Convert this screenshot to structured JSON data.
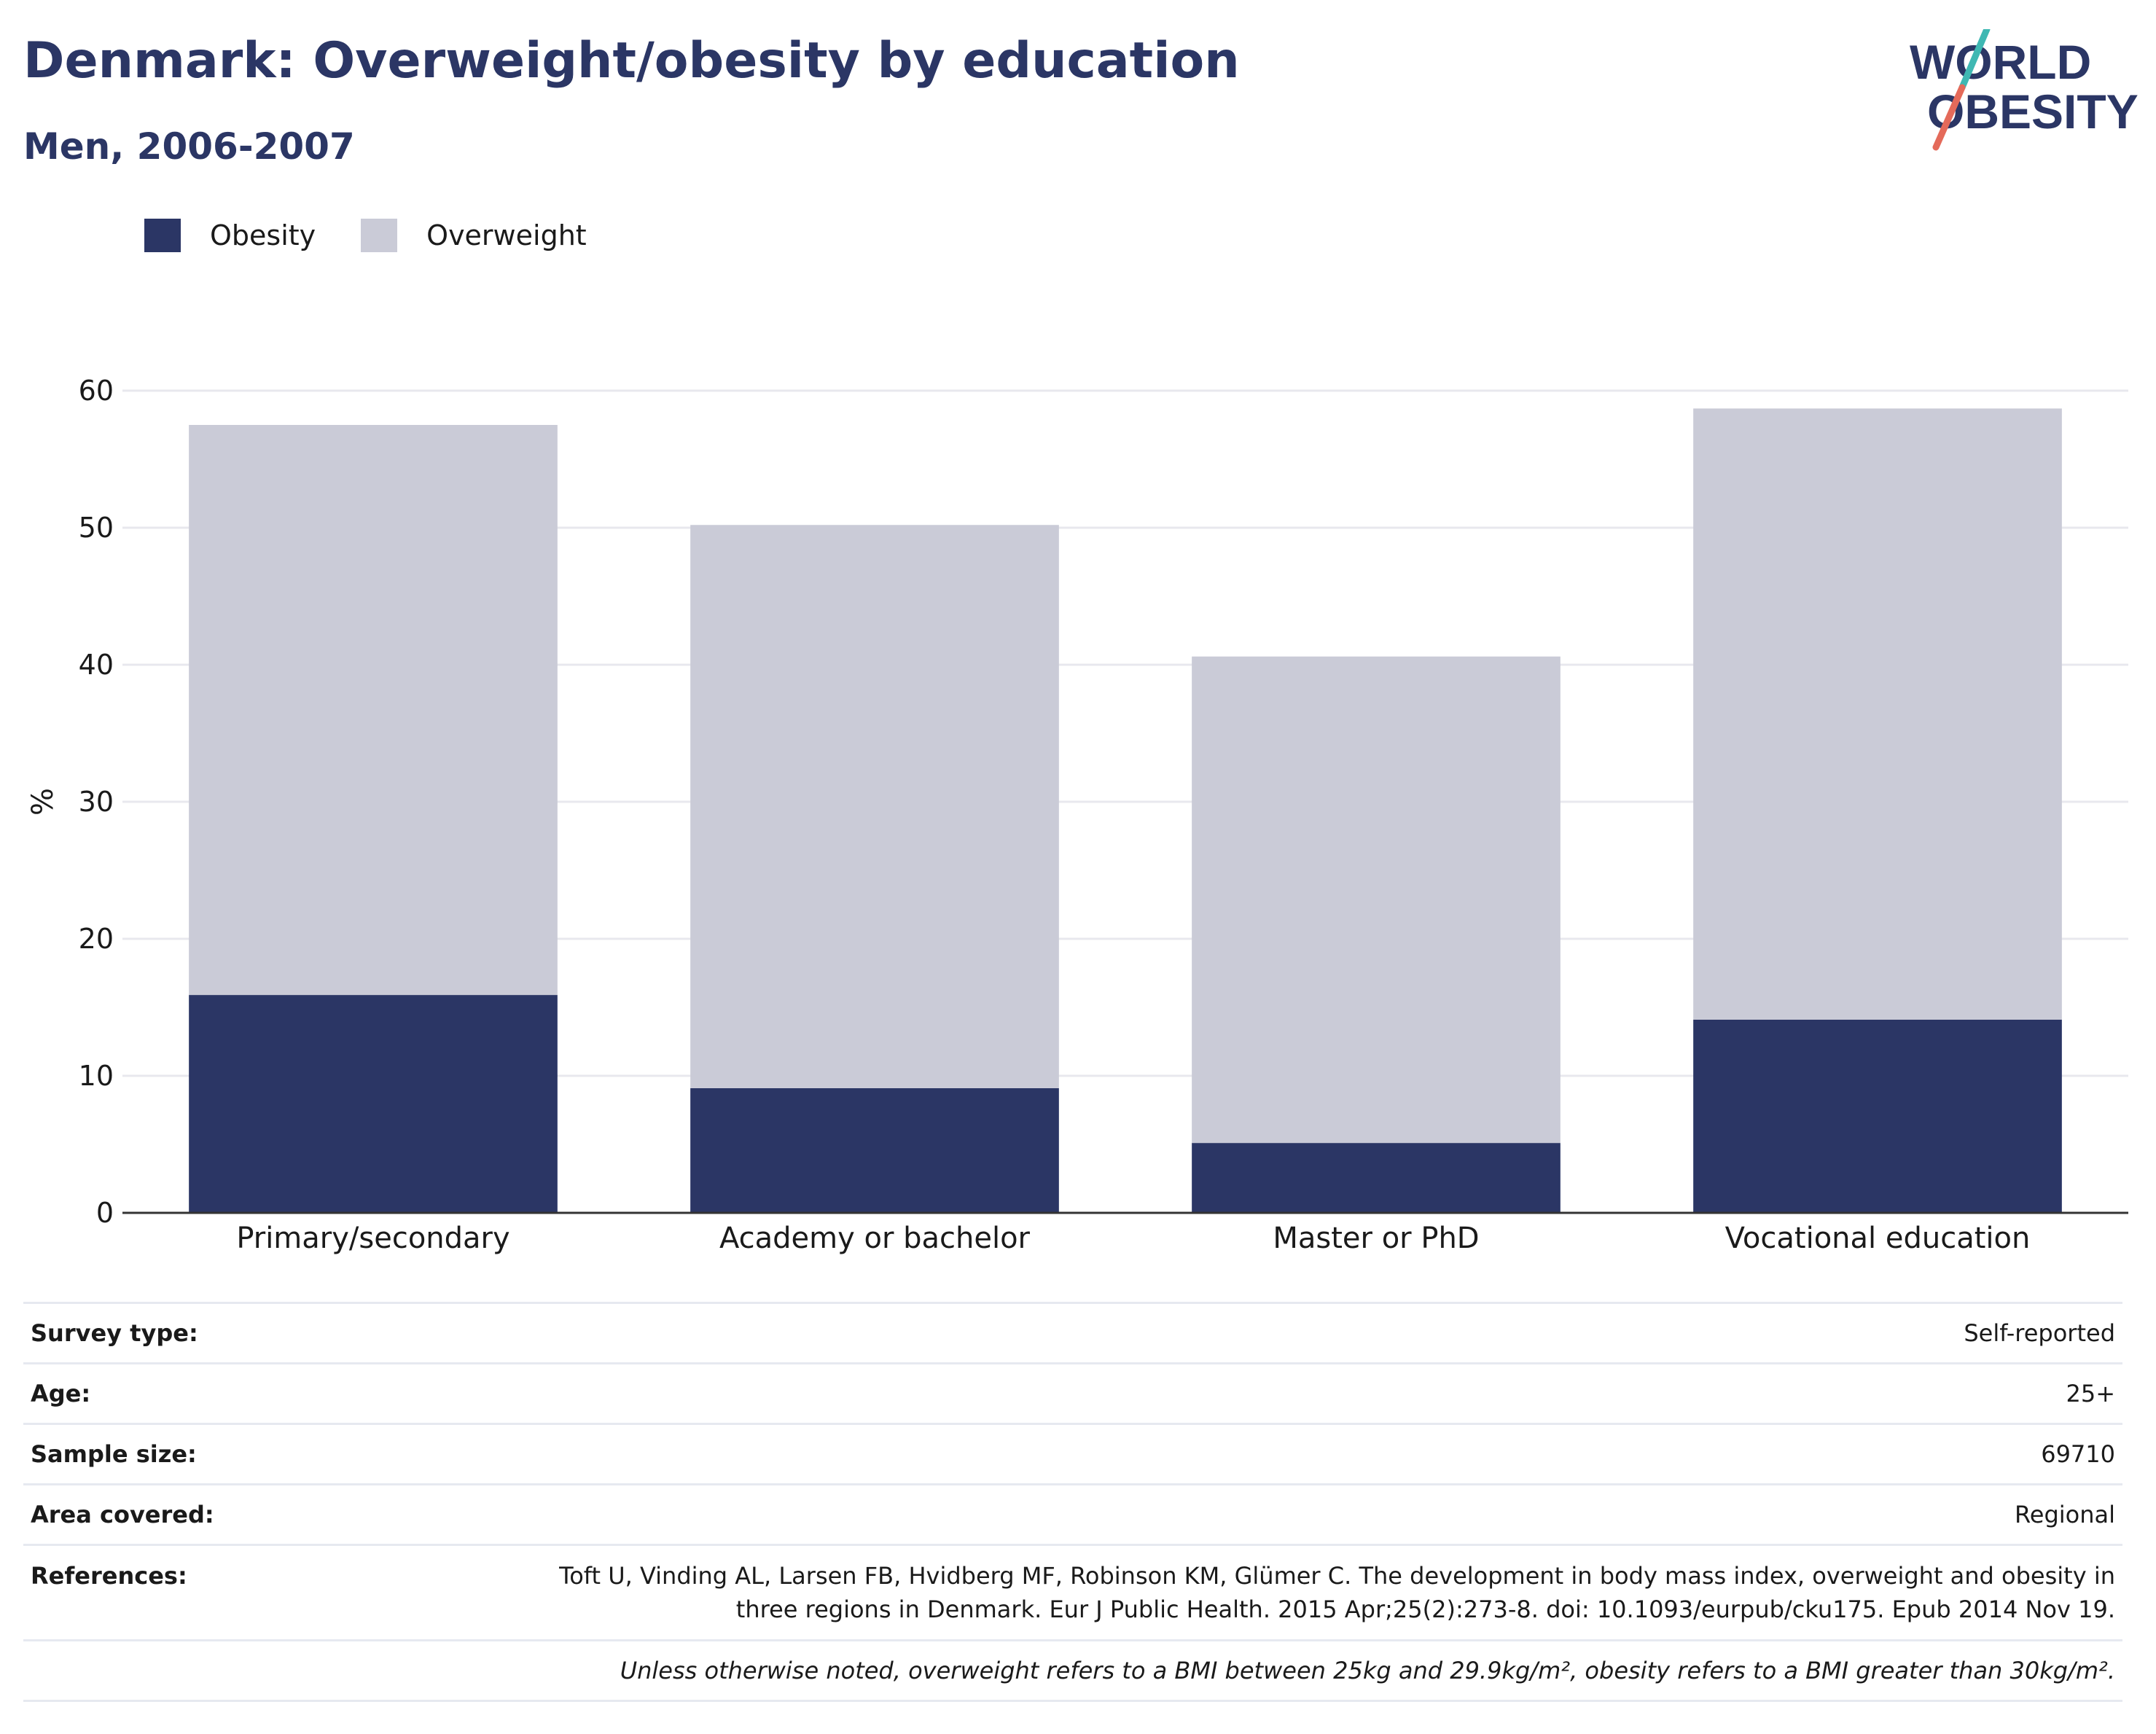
{
  "header": {
    "title": "Denmark: Overweight/obesity by education",
    "subtitle": "Men, 2006-2007"
  },
  "logo": {
    "line1": "WORLD",
    "line2": "OBESITY"
  },
  "colors": {
    "obesity": "#2b3665",
    "overweight": "#cacbd7",
    "title": "#2b3665",
    "logo_text": "#2b3665",
    "logo_slash_top": "#3fb8b3",
    "logo_slash_bottom": "#e46a5a",
    "grid": "#e8e8ee",
    "axis": "#333333"
  },
  "legend": [
    {
      "label": "Obesity",
      "color": "#2b3665"
    },
    {
      "label": "Overweight",
      "color": "#cacbd7"
    }
  ],
  "chart_data": {
    "type": "bar",
    "stacked": true,
    "categories": [
      "Primary/secondary",
      "Academy or bachelor",
      "Master or PhD",
      "Vocational education"
    ],
    "series": [
      {
        "name": "Obesity",
        "values": [
          15.9,
          9.1,
          5.1,
          14.1
        ]
      },
      {
        "name": "Overweight",
        "values": [
          41.6,
          41.1,
          35.5,
          44.6
        ]
      }
    ],
    "ylabel": "%",
    "ylim": [
      0,
      60
    ],
    "yticks": [
      0,
      10,
      20,
      30,
      40,
      50,
      60
    ],
    "grid": true,
    "legend_position": "top-left"
  },
  "info": [
    {
      "key": "Survey type:",
      "value": "Self-reported"
    },
    {
      "key": "Age:",
      "value": "25+"
    },
    {
      "key": "Sample size:",
      "value": "69710"
    },
    {
      "key": "Area covered:",
      "value": "Regional"
    },
    {
      "key": "References:",
      "value_line1": "Toft U, Vinding AL, Larsen FB, Hvidberg MF, Robinson KM, Glümer C. The development in body mass index, overweight and obesity in",
      "value_line2": "three regions in Denmark. Eur J Public Health. 2015 Apr;25(2):273-8. doi: 10.1093/eurpub/cku175. Epub 2014 Nov 19."
    }
  ],
  "note": "Unless otherwise noted, overweight refers to a BMI between 25kg and 29.9kg/m², obesity refers to a BMI greater than 30kg/m²."
}
